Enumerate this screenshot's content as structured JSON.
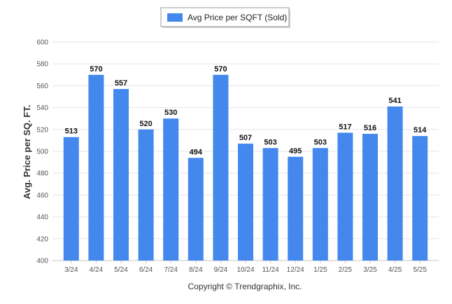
{
  "legend": {
    "label": "Avg Price per SQFT (Sold)"
  },
  "footer": {
    "copyright": "Copyright © Trendgraphix, Inc."
  },
  "colors": {
    "bar": "#4488EE",
    "grid": "#E6E6E6",
    "axis": "#C8C8C8"
  },
  "chart_data": {
    "type": "bar",
    "title": "",
    "xlabel": "",
    "ylabel": "Avg. Price per SQ. FT.",
    "categories": [
      "3/24",
      "4/24",
      "5/24",
      "6/24",
      "7/24",
      "8/24",
      "9/24",
      "10/24",
      "11/24",
      "12/24",
      "1/25",
      "2/25",
      "3/25",
      "4/25",
      "5/25"
    ],
    "series": [
      {
        "name": "Avg Price per SQFT (Sold)",
        "values": [
          513,
          570,
          557,
          520,
          530,
          494,
          570,
          507,
          503,
          495,
          503,
          517,
          516,
          541,
          514
        ]
      }
    ],
    "ylim": [
      400,
      600
    ],
    "yticks": [
      400,
      420,
      440,
      460,
      480,
      500,
      520,
      540,
      560,
      580,
      600
    ],
    "grid": true,
    "legend_position": "top-center"
  }
}
